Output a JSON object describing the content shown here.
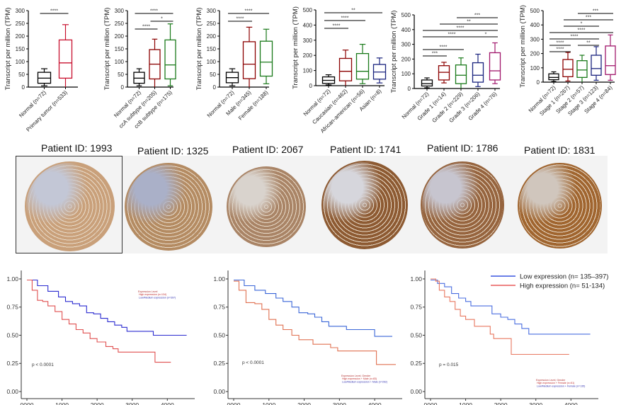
{
  "chart_data": [
    {
      "type": "box",
      "id": "box-tumor",
      "ylabel": "Transcript per million (TPM)",
      "ylim": [
        0,
        300
      ],
      "yticks": [
        0,
        50,
        100,
        150,
        200,
        250,
        300
      ],
      "categories": [
        "Normal (n=72)",
        "Primary tumor (n=533)"
      ],
      "colors": [
        "#000000",
        "#c8102e"
      ],
      "boxes": [
        {
          "min": 5,
          "q1": 15,
          "median": 35,
          "q3": 58,
          "max": 72
        },
        {
          "min": 0,
          "q1": 35,
          "median": 95,
          "q3": 185,
          "max": 245
        }
      ],
      "significance": [
        {
          "from": 0,
          "to": 1,
          "label": "****"
        }
      ]
    },
    {
      "type": "box",
      "id": "box-subtype",
      "ylabel": "Transcript per million (TPM)",
      "ylim": [
        0,
        300
      ],
      "yticks": [
        0,
        50,
        100,
        150,
        200,
        250,
        300
      ],
      "categories": [
        "Normal (n=72)",
        "ccA subtype (n=205)",
        "ccB subtype (n=175)"
      ],
      "colors": [
        "#000000",
        "#8b0000",
        "#1a7a1a"
      ],
      "boxes": [
        {
          "min": 5,
          "q1": 15,
          "median": 35,
          "q3": 58,
          "max": 72
        },
        {
          "min": 0,
          "q1": 32,
          "median": 90,
          "q3": 147,
          "max": 188
        },
        {
          "min": 5,
          "q1": 32,
          "median": 87,
          "q3": 185,
          "max": 248
        }
      ],
      "significance": [
        {
          "from": 0,
          "to": 2,
          "label": "****"
        },
        {
          "from": 1,
          "to": 2,
          "label": "*"
        },
        {
          "from": 0,
          "to": 1,
          "label": "****"
        }
      ]
    },
    {
      "type": "box",
      "id": "box-gender",
      "ylabel": "Transcript per million (TPM)",
      "ylim": [
        0,
        300
      ],
      "yticks": [
        0,
        50,
        100,
        150,
        200,
        250,
        300
      ],
      "categories": [
        "Normal (n=72)",
        "Male (n=345)",
        "Female (n=188)"
      ],
      "colors": [
        "#000000",
        "#8b0000",
        "#1a7a1a"
      ],
      "boxes": [
        {
          "min": 5,
          "q1": 17,
          "median": 37,
          "q3": 58,
          "max": 72
        },
        {
          "min": 0,
          "q1": 33,
          "median": 90,
          "q3": 178,
          "max": 235
        },
        {
          "min": 13,
          "q1": 43,
          "median": 98,
          "q3": 180,
          "max": 227
        }
      ],
      "significance": [
        {
          "from": 0,
          "to": 2,
          "label": "****"
        },
        {
          "from": 0,
          "to": 1,
          "label": "****"
        }
      ]
    },
    {
      "type": "box",
      "id": "box-race",
      "ylabel": "Transcript per million (TPM)",
      "ylim": [
        0,
        500
      ],
      "yticks": [
        0,
        100,
        200,
        300,
        400,
        500
      ],
      "categories": [
        "Normal (n=72)",
        "Caucasian (n=462)",
        "African-american (n=56)",
        "Asian (n=8)"
      ],
      "colors": [
        "#000000",
        "#8b0000",
        "#1a7a1a",
        "#1a237e"
      ],
      "boxes": [
        {
          "min": 5,
          "q1": 15,
          "median": 35,
          "q3": 58,
          "max": 72
        },
        {
          "min": 0,
          "q1": 32,
          "median": 95,
          "q3": 180,
          "max": 235
        },
        {
          "min": 13,
          "q1": 43,
          "median": 95,
          "q3": 212,
          "max": 273
        },
        {
          "min": 18,
          "q1": 43,
          "median": 90,
          "q3": 140,
          "max": 183
        }
      ],
      "significance": [
        {
          "from": 0,
          "to": 3,
          "label": "**"
        },
        {
          "from": 0,
          "to": 2,
          "label": "****"
        },
        {
          "from": 0,
          "to": 1,
          "label": "****"
        }
      ]
    },
    {
      "type": "box",
      "id": "box-grade",
      "ylabel": "Transcript per million (TPM)",
      "ylim": [
        0,
        500
      ],
      "yticks": [
        0,
        100,
        200,
        300,
        400,
        500
      ],
      "categories": [
        "Normal (n=72)",
        "Grade 1 (n=14)",
        "Grade 2 (n=229)",
        "Grade 3 (n=206)",
        "Grade 4 (n=76)"
      ],
      "colors": [
        "#000000",
        "#8b0000",
        "#1a7a1a",
        "#1a237e",
        "#a0166b"
      ],
      "boxes": [
        {
          "min": 5,
          "q1": 17,
          "median": 33,
          "q3": 58,
          "max": 72
        },
        {
          "min": 38,
          "q1": 58,
          "median": 110,
          "q3": 155,
          "max": 178
        },
        {
          "min": 0,
          "q1": 33,
          "median": 90,
          "q3": 160,
          "max": 208
        },
        {
          "min": 13,
          "q1": 43,
          "median": 90,
          "q3": 175,
          "max": 233
        },
        {
          "min": 33,
          "q1": 58,
          "median": 120,
          "q3": 243,
          "max": 310
        }
      ],
      "significance": [
        {
          "from": 2,
          "to": 4,
          "label": "***"
        },
        {
          "from": 1,
          "to": 4,
          "label": "**"
        },
        {
          "from": 0,
          "to": 4,
          "label": "****"
        },
        {
          "from": 0,
          "to": 3,
          "label": "****"
        },
        {
          "from": 3,
          "to": 4,
          "label": "*"
        },
        {
          "from": 0,
          "to": 2,
          "label": "****"
        },
        {
          "from": 0,
          "to": 1,
          "label": "***"
        }
      ]
    },
    {
      "type": "box",
      "id": "box-stage",
      "ylabel": "Transcript per million (TPM)",
      "ylim": [
        0,
        500
      ],
      "yticks": [
        0,
        100,
        200,
        300,
        400,
        500
      ],
      "categories": [
        "Normal (n=72)",
        "Stage 1 (n=267)",
        "Stage 2 (n=57)",
        "Stage 3 (n=123)",
        "Stage 4 (n=84)"
      ],
      "colors": [
        "#000000",
        "#8b0000",
        "#1a7a1a",
        "#1a237e",
        "#a0166b"
      ],
      "boxes": [
        {
          "min": 5,
          "q1": 17,
          "median": 33,
          "q3": 58,
          "max": 72
        },
        {
          "min": 8,
          "q1": 38,
          "median": 90,
          "q3": 158,
          "max": 208
        },
        {
          "min": 0,
          "q1": 33,
          "median": 85,
          "q3": 150,
          "max": 188
        },
        {
          "min": 13,
          "q1": 48,
          "median": 95,
          "q3": 188,
          "max": 248
        },
        {
          "min": 13,
          "q1": 53,
          "median": 115,
          "q3": 253,
          "max": 330
        }
      ],
      "significance": [
        {
          "from": 2,
          "to": 4,
          "label": "***"
        },
        {
          "from": 1,
          "to": 4,
          "label": "***"
        },
        {
          "from": 1,
          "to": 3,
          "label": "*"
        },
        {
          "from": 0,
          "to": 4,
          "label": "****"
        },
        {
          "from": 0,
          "to": 3,
          "label": "****"
        },
        {
          "from": 0,
          "to": 1,
          "label": "****"
        },
        {
          "from": 2,
          "to": 3,
          "label": "**"
        },
        {
          "from": 0,
          "to": 1,
          "label": "****",
          "level": "low"
        }
      ]
    },
    {
      "type": "line",
      "id": "km-all",
      "subtype": "kaplan-meier",
      "xlim": [
        0,
        4700
      ],
      "ylim": [
        0,
        1.05
      ],
      "xticks": [
        "0000",
        "1000",
        "2000",
        "3000",
        "4000"
      ],
      "xtick_values": [
        0,
        1000,
        2000,
        3000,
        4000
      ],
      "yticks": [
        "0.00",
        "0.25",
        "0.50",
        "0.75",
        "1.00"
      ],
      "ytick_values": [
        0,
        0.25,
        0.5,
        0.75,
        1.0
      ],
      "pvalue": "p < 0.0001",
      "legend": {
        "title": "Expression Level",
        "entries": [
          "High expression (n=134)",
          "Low/Medium expression (n=397)"
        ],
        "placement": "top-right"
      },
      "series": [
        {
          "name": "Low/Medium expression",
          "color": "#2b2bd0",
          "points": [
            [
              0,
              0.99
            ],
            [
              300,
              0.94
            ],
            [
              600,
              0.89
            ],
            [
              900,
              0.84
            ],
            [
              1100,
              0.8
            ],
            [
              1300,
              0.78
            ],
            [
              1500,
              0.76
            ],
            [
              1700,
              0.7
            ],
            [
              1900,
              0.69
            ],
            [
              2100,
              0.65
            ],
            [
              2300,
              0.62
            ],
            [
              2500,
              0.59
            ],
            [
              2700,
              0.57
            ],
            [
              2850,
              0.535
            ],
            [
              3200,
              0.535
            ],
            [
              3600,
              0.535
            ],
            [
              3600,
              0.5
            ],
            [
              4550,
              0.5
            ]
          ]
        },
        {
          "name": "High expression",
          "color": "#e05050",
          "points": [
            [
              0,
              0.99
            ],
            [
              150,
              0.9
            ],
            [
              300,
              0.81
            ],
            [
              450,
              0.8
            ],
            [
              600,
              0.76
            ],
            [
              800,
              0.71
            ],
            [
              1000,
              0.64
            ],
            [
              1200,
              0.6
            ],
            [
              1400,
              0.55
            ],
            [
              1600,
              0.52
            ],
            [
              1800,
              0.47
            ],
            [
              2000,
              0.44
            ],
            [
              2250,
              0.4
            ],
            [
              2450,
              0.38
            ],
            [
              2600,
              0.35
            ],
            [
              3000,
              0.35
            ],
            [
              3650,
              0.35
            ],
            [
              3650,
              0.26
            ],
            [
              4100,
              0.26
            ]
          ]
        }
      ]
    },
    {
      "type": "line",
      "id": "km-male",
      "subtype": "kaplan-meier",
      "xlim": [
        0,
        4700
      ],
      "ylim": [
        0,
        1.05
      ],
      "xticks": [
        "0000",
        "1000",
        "2000",
        "3000",
        "4000"
      ],
      "xtick_values": [
        0,
        1000,
        2000,
        3000,
        4000
      ],
      "yticks": [
        "0.00",
        "0.25",
        "0.50",
        "0.75",
        "1.00"
      ],
      "ytick_values": [
        0,
        0.25,
        0.5,
        0.75,
        1.0
      ],
      "pvalue": "p < 0.0001",
      "legend": {
        "title": "Expression Level, Gender",
        "entries": [
          "High expression + Male (n=83)",
          "Low/Medium expression + Male (n=262)"
        ],
        "placement": "bottom-right"
      },
      "series": [
        {
          "name": "Low/Medium expression + Male",
          "color": "#3a66d8",
          "points": [
            [
              0,
              0.99
            ],
            [
              300,
              0.94
            ],
            [
              600,
              0.9
            ],
            [
              900,
              0.87
            ],
            [
              1200,
              0.83
            ],
            [
              1400,
              0.8
            ],
            [
              1650,
              0.75
            ],
            [
              1850,
              0.7
            ],
            [
              2100,
              0.69
            ],
            [
              2300,
              0.66
            ],
            [
              2500,
              0.62
            ],
            [
              2700,
              0.58
            ],
            [
              3200,
              0.58
            ],
            [
              3200,
              0.55
            ],
            [
              4000,
              0.55
            ],
            [
              4000,
              0.49
            ],
            [
              4500,
              0.49
            ]
          ]
        },
        {
          "name": "High expression + Male",
          "color": "#e07050",
          "points": [
            [
              0,
              0.98
            ],
            [
              150,
              0.9
            ],
            [
              350,
              0.79
            ],
            [
              600,
              0.78
            ],
            [
              800,
              0.73
            ],
            [
              1000,
              0.64
            ],
            [
              1200,
              0.59
            ],
            [
              1400,
              0.55
            ],
            [
              1650,
              0.5
            ],
            [
              1850,
              0.46
            ],
            [
              2100,
              0.46
            ],
            [
              2250,
              0.42
            ],
            [
              2750,
              0.42
            ],
            [
              2750,
              0.39
            ],
            [
              2950,
              0.36
            ],
            [
              4050,
              0.36
            ],
            [
              4050,
              0.24
            ],
            [
              4600,
              0.24
            ]
          ]
        }
      ]
    },
    {
      "type": "line",
      "id": "km-female",
      "subtype": "kaplan-meier",
      "xlim": [
        0,
        4700
      ],
      "ylim": [
        0,
        1.05
      ],
      "xticks": [
        "0000",
        "1000",
        "2000",
        "3000",
        "4000"
      ],
      "xtick_values": [
        0,
        1000,
        2000,
        3000,
        4000
      ],
      "yticks": [
        "0.00",
        "0.25",
        "0.50",
        "0.75",
        "1.00"
      ],
      "ytick_values": [
        0,
        0.25,
        0.5,
        0.75,
        1.0
      ],
      "pvalue": "p = 0.015",
      "legend": {
        "title": "Expression Level, Gender",
        "entries": [
          "High expression + Female (n=51)",
          "Low/Medium expression + Female (n=135)"
        ],
        "placement": "bottom-right"
      },
      "series": [
        {
          "name": "Low/Medium expression + Female",
          "color": "#4a6ee0",
          "points": [
            [
              0,
              0.99
            ],
            [
              200,
              0.96
            ],
            [
              400,
              0.93
            ],
            [
              600,
              0.87
            ],
            [
              800,
              0.83
            ],
            [
              1000,
              0.8
            ],
            [
              1150,
              0.76
            ],
            [
              1600,
              0.76
            ],
            [
              1750,
              0.69
            ],
            [
              2000,
              0.66
            ],
            [
              2200,
              0.64
            ],
            [
              2400,
              0.6
            ],
            [
              2600,
              0.56
            ],
            [
              2800,
              0.51
            ],
            [
              4550,
              0.51
            ]
          ]
        },
        {
          "name": "High expression + Female",
          "color": "#e87860",
          "points": [
            [
              0,
              1.0
            ],
            [
              150,
              0.98
            ],
            [
              250,
              0.9
            ],
            [
              400,
              0.84
            ],
            [
              550,
              0.8
            ],
            [
              700,
              0.73
            ],
            [
              850,
              0.67
            ],
            [
              1000,
              0.64
            ],
            [
              1250,
              0.58
            ],
            [
              1650,
              0.58
            ],
            [
              1700,
              0.51
            ],
            [
              1800,
              0.47
            ],
            [
              2250,
              0.47
            ],
            [
              2300,
              0.33
            ],
            [
              3950,
              0.33
            ]
          ]
        }
      ]
    }
  ],
  "overlay_legend": {
    "entries": [
      {
        "label": "Low expression  (n= 135–397)",
        "color": "#3a55e0"
      },
      {
        "label": "High expression (n= 51-134)",
        "color": "#e85a5a"
      }
    ]
  },
  "ihc": {
    "panels": [
      {
        "title": "Patient ID: 1993",
        "stain": "#c9a07a",
        "stroma": "#c3c7d6",
        "highlighted": true
      },
      {
        "title": "Patient ID: 1325",
        "stain": "#b48b62",
        "stroma": "#aab0c8",
        "highlighted": false
      },
      {
        "title": "Patient ID: 2067",
        "stain": "#a98466",
        "stroma": "#d9d3cd",
        "highlighted": false
      },
      {
        "title": "Patient ID: 1741",
        "stain": "#8d5a32",
        "stroma": "#d6d6dc",
        "highlighted": false
      },
      {
        "title": "Patient ID: 1786",
        "stain": "#96643e",
        "stroma": "#c7c5cf",
        "highlighted": false
      },
      {
        "title": "Patient ID: 1831",
        "stain": "#a0652f",
        "stroma": "#d0c6bd",
        "highlighted": false
      }
    ]
  }
}
